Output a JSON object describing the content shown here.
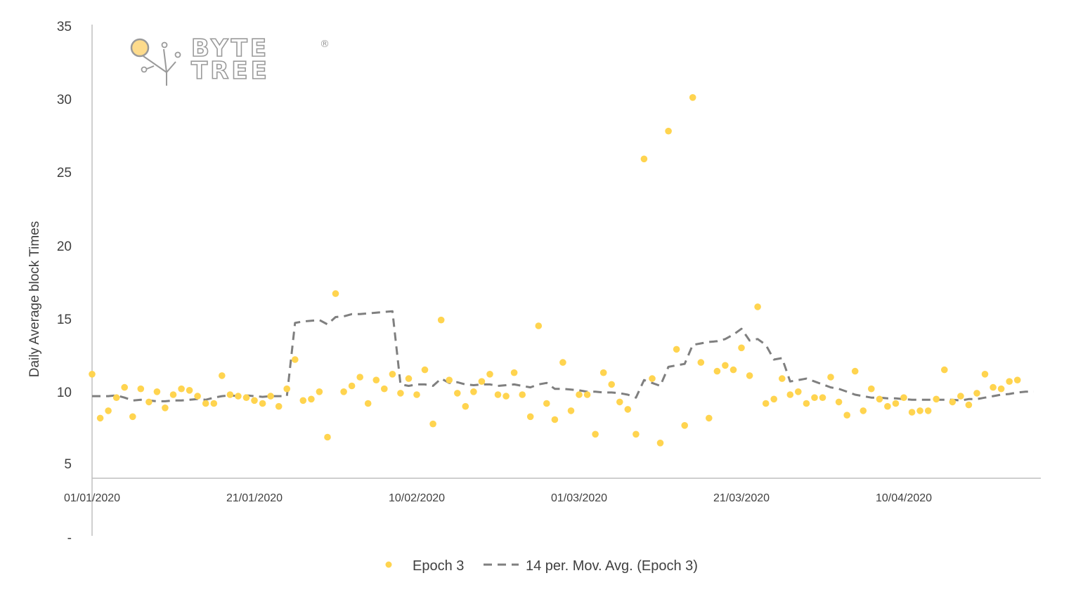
{
  "logo": {
    "line1": "BYTE",
    "line2": "TREE",
    "registered": "®"
  },
  "chart_data": {
    "type": "scatter",
    "ylabel": "Daily  Average block Times",
    "y_ticks": [
      "35",
      "30",
      "25",
      "20",
      "15",
      "10",
      "5",
      "-"
    ],
    "y_tick_values": [
      35,
      30,
      25,
      20,
      15,
      10,
      5,
      0
    ],
    "ylim": [
      0,
      35
    ],
    "x_ticks": [
      {
        "label": "01/01/2020",
        "day": 0
      },
      {
        "label": "21/01/2020",
        "day": 20
      },
      {
        "label": "10/02/2020",
        "day": 40
      },
      {
        "label": "01/03/2020",
        "day": 60
      },
      {
        "label": "21/03/2020",
        "day": 80
      },
      {
        "label": "10/04/2020",
        "day": 100
      }
    ],
    "legend": {
      "position": "bottom",
      "scatter_label": "Epoch 3",
      "line_label": "14 per. Mov. Avg. (Epoch 3)"
    },
    "colors": {
      "scatter": "#FFD44F",
      "moving_average": "#7F7F7F",
      "axis": "#BFBFBF",
      "logo_circle": "#FDDB8C"
    },
    "series": [
      {
        "name": "Epoch 3",
        "kind": "scatter",
        "x": [
          0,
          1,
          2,
          3,
          4,
          5,
          6,
          7,
          8,
          9,
          10,
          11,
          12,
          13,
          14,
          15,
          16,
          17,
          18,
          19,
          20,
          21,
          22,
          23,
          24,
          25,
          26,
          27,
          28,
          29,
          30,
          31,
          32,
          33,
          34,
          35,
          36,
          37,
          38,
          39,
          40,
          41,
          42,
          43,
          44,
          45,
          46,
          47,
          48,
          49,
          50,
          51,
          52,
          53,
          54,
          55,
          56,
          57,
          58,
          59,
          60,
          61,
          62,
          63,
          64,
          65,
          66,
          67,
          68,
          69,
          70,
          71,
          72,
          73,
          74,
          75,
          76,
          77,
          78,
          79,
          80,
          81,
          82,
          83,
          84,
          85,
          86,
          87,
          88,
          89,
          90,
          91,
          92,
          93,
          94,
          95,
          96,
          97,
          98,
          99,
          100,
          101,
          102,
          103,
          104,
          105,
          106,
          107,
          108,
          109,
          110,
          111,
          112,
          113,
          114,
          115,
          116
        ],
        "y": [
          11.1,
          8.1,
          8.6,
          9.5,
          10.2,
          8.2,
          10.1,
          9.2,
          9.9,
          8.8,
          9.7,
          10.1,
          10.0,
          9.6,
          9.1,
          9.1,
          11.0,
          9.7,
          9.6,
          9.5,
          9.3,
          9.1,
          9.6,
          8.9,
          10.1,
          12.1,
          9.3,
          9.4,
          9.9,
          6.8,
          16.6,
          9.9,
          10.3,
          10.9,
          9.1,
          10.7,
          10.1,
          11.1,
          9.8,
          10.8,
          9.7,
          11.4,
          7.7,
          14.8,
          10.7,
          9.8,
          8.9,
          9.9,
          10.6,
          11.1,
          9.7,
          9.6,
          11.2,
          9.7,
          8.2,
          14.4,
          9.1,
          8.0,
          11.9,
          8.6,
          9.7,
          9.7,
          7.0,
          11.2,
          10.4,
          9.2,
          8.7,
          7.0,
          25.8,
          10.8,
          6.4,
          27.7,
          12.8,
          7.6,
          30.0,
          11.9,
          8.1,
          11.3,
          11.7,
          11.4,
          12.9,
          11.0,
          15.7,
          9.1,
          9.4,
          10.8,
          9.7,
          9.9,
          9.1,
          9.5,
          9.5,
          10.9,
          9.2,
          8.3,
          11.3,
          8.6,
          10.1,
          9.4,
          8.9,
          9.1,
          9.5,
          8.5,
          8.6,
          8.6,
          9.4,
          11.4,
          9.2,
          9.6,
          9.0,
          9.8,
          11.1,
          10.2,
          10.1,
          10.6,
          10.7,
          null,
          null
        ]
      },
      {
        "name": "14 per. Mov. Avg. (Epoch 3)",
        "kind": "line",
        "x": [
          0,
          1,
          2,
          3,
          4,
          5,
          6,
          7,
          8,
          9,
          10,
          11,
          12,
          13,
          14,
          15,
          16,
          17,
          18,
          19,
          20,
          21,
          22,
          23,
          24,
          25,
          26,
          27,
          28,
          29,
          30,
          31,
          32,
          33,
          34,
          35,
          36,
          37,
          38,
          39,
          40,
          41,
          42,
          43,
          44,
          45,
          46,
          47,
          48,
          49,
          50,
          51,
          52,
          53,
          54,
          55,
          56,
          57,
          58,
          59,
          60,
          61,
          62,
          63,
          64,
          65,
          66,
          67,
          68,
          69,
          70,
          71,
          72,
          73,
          74,
          75,
          76,
          77,
          78,
          79,
          80,
          81,
          82,
          83,
          84,
          85,
          86,
          87,
          88,
          89,
          90,
          91,
          92,
          93,
          94,
          95,
          96,
          97,
          98,
          99,
          100,
          101,
          102,
          103,
          104,
          105,
          106,
          107,
          108,
          109,
          110,
          111,
          112,
          113,
          114,
          115,
          116
        ],
        "y": [
          9.6,
          9.6,
          9.6,
          9.65,
          9.5,
          9.3,
          9.35,
          9.3,
          9.25,
          9.25,
          9.3,
          9.3,
          9.35,
          9.4,
          9.35,
          9.5,
          9.6,
          9.65,
          9.6,
          9.65,
          9.6,
          9.55,
          9.6,
          9.6,
          9.6,
          14.6,
          14.7,
          14.75,
          14.8,
          14.5,
          15.0,
          15.05,
          15.2,
          15.2,
          15.25,
          15.3,
          15.35,
          15.4,
          10.4,
          10.3,
          10.4,
          10.4,
          10.3,
          10.8,
          10.5,
          10.55,
          10.4,
          10.35,
          10.4,
          10.4,
          10.3,
          10.35,
          10.4,
          10.3,
          10.2,
          10.4,
          10.5,
          10.1,
          10.1,
          10.05,
          10.0,
          9.9,
          9.9,
          9.85,
          9.85,
          9.8,
          9.7,
          9.5,
          10.7,
          10.5,
          10.3,
          11.6,
          11.7,
          11.8,
          13.1,
          13.2,
          13.3,
          13.35,
          13.5,
          13.8,
          14.2,
          13.4,
          13.5,
          13.1,
          12.1,
          12.2,
          10.6,
          10.7,
          10.8,
          10.6,
          10.4,
          10.2,
          10.1,
          9.9,
          9.7,
          9.6,
          9.5,
          9.5,
          9.45,
          9.45,
          9.4,
          9.35,
          9.35,
          9.35,
          9.35,
          9.35,
          9.35,
          9.3,
          9.4,
          9.4,
          9.5,
          9.6,
          9.7,
          9.75,
          9.85,
          9.9,
          9.9
        ]
      }
    ]
  }
}
